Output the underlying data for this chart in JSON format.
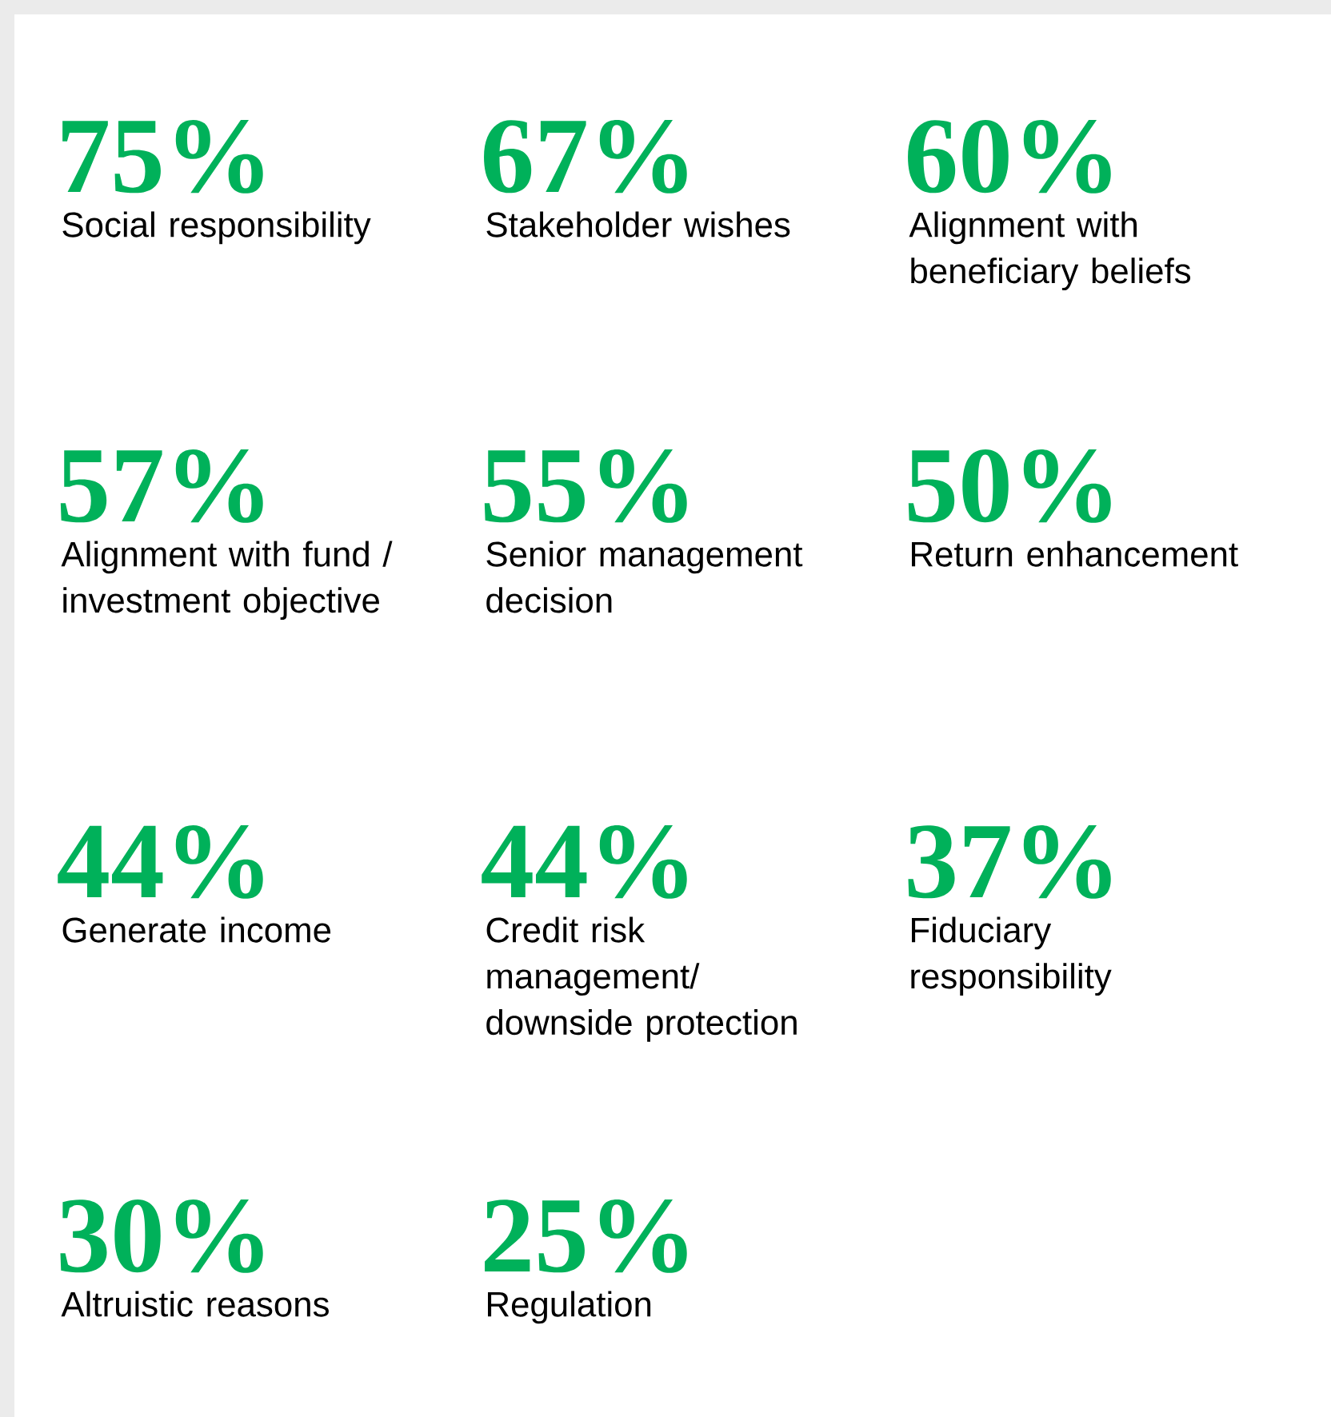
{
  "chart_data": {
    "type": "other",
    "categories": [
      "Social responsibility",
      "Stakeholder wishes",
      "Alignment with beneficiary beliefs",
      "Alignment with fund / investment objective",
      "Senior management decision",
      "Return enhancement",
      "Generate income",
      "Credit risk management/ downside protection",
      "Fiduciary responsibility",
      "Altruistic reasons",
      "Regulation"
    ],
    "values": [
      75,
      67,
      60,
      57,
      55,
      50,
      44,
      44,
      37,
      30,
      25
    ],
    "data_labels": true,
    "ylabel": "%",
    "color": "#00b15a"
  }
}
